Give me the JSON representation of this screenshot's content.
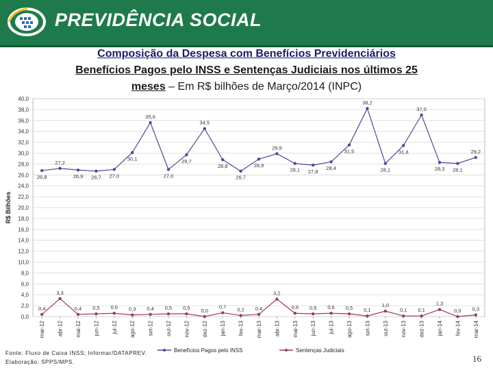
{
  "header": {
    "brand": "PREVIDÊNCIA SOCIAL"
  },
  "titles": {
    "line1": "Composição da Despesa com Benefícios Previdenciários",
    "line2": "Benefícios Pagos pelo INSS e Sentenças Judiciais nos últimos 25",
    "line3_bold": "meses",
    "line3_rest": " – Em R$ bilhões de Março/2014 (INPC)"
  },
  "footer": {
    "source": "Fonte: Fluxo de Caixa INSS; Informar/DATAPREV.",
    "credit": "Elaboração: SPPS/MPS.",
    "page": "16"
  },
  "colors": {
    "header": "#1e7a4a",
    "series1": "#4b4a9a",
    "series2": "#9b3a5a"
  },
  "chart_data": {
    "type": "line",
    "ylabel": "R$ Bilhões",
    "xlabel": "",
    "ylim": [
      0,
      40
    ],
    "yticks": [
      "0,0",
      "2,0",
      "4,0",
      "6,0",
      "8,0",
      "10,0",
      "12,0",
      "14,0",
      "16,0",
      "18,0",
      "20,0",
      "22,0",
      "24,0",
      "26,0",
      "28,0",
      "30,0",
      "32,0",
      "34,0",
      "36,0",
      "38,0",
      "40,0"
    ],
    "grid": true,
    "legend_position": "bottom",
    "categories": [
      "mar-12",
      "abr-12",
      "mai-12",
      "jun-12",
      "jul-12",
      "ago-12",
      "set-12",
      "out-12",
      "nov-12",
      "dez-12",
      "jan-13",
      "fev-13",
      "mar-13",
      "abr-13",
      "mai-13",
      "jun-13",
      "jul-13",
      "ago-13",
      "set-13",
      "out-13",
      "nov-13",
      "dez-13",
      "jan-14",
      "fev-14",
      "mar-14"
    ],
    "series": [
      {
        "name": "Benefícios Pagos pelo INSS",
        "values": [
          26.8,
          27.2,
          26.9,
          26.7,
          27.0,
          30.1,
          35.6,
          27.0,
          29.7,
          34.5,
          28.8,
          26.7,
          28.9,
          29.9,
          28.1,
          27.8,
          28.4,
          31.5,
          38.2,
          28.1,
          31.4,
          37.0,
          28.3,
          28.1,
          29.2
        ],
        "labels": [
          "26,8",
          "27,2",
          "26,9",
          "26,7",
          "27,0",
          "30,1",
          "35,6",
          "27,0",
          "29,7",
          "34,5",
          "28,8",
          "26,7",
          "28,9",
          "29,9",
          "28,1",
          "27,8",
          "28,4",
          "31,5",
          "38,2",
          "28,1",
          "31,4",
          "37,0",
          "28,3",
          "28,1",
          "29,2"
        ]
      },
      {
        "name": "Sentenças Judiciais",
        "values": [
          0.4,
          3.3,
          0.4,
          0.5,
          0.6,
          0.3,
          0.4,
          0.5,
          0.5,
          0.0,
          0.7,
          0.2,
          0.4,
          3.2,
          0.6,
          0.5,
          0.6,
          0.5,
          0.1,
          1.0,
          0.1,
          0.1,
          1.3,
          0.0,
          0.3
        ],
        "labels": [
          "0,4",
          "3,3",
          "0,4",
          "0,5",
          "0,6",
          "0,3",
          "0,4",
          "0,5",
          "0,5",
          "0,0",
          "0,7",
          "0,2",
          "0,4",
          "3,2",
          "0,6",
          "0,5",
          "0,6",
          "0,5",
          "0,1",
          "1,0",
          "0,1",
          "0,1",
          "1,3",
          "0,0",
          "0,3"
        ]
      }
    ]
  }
}
